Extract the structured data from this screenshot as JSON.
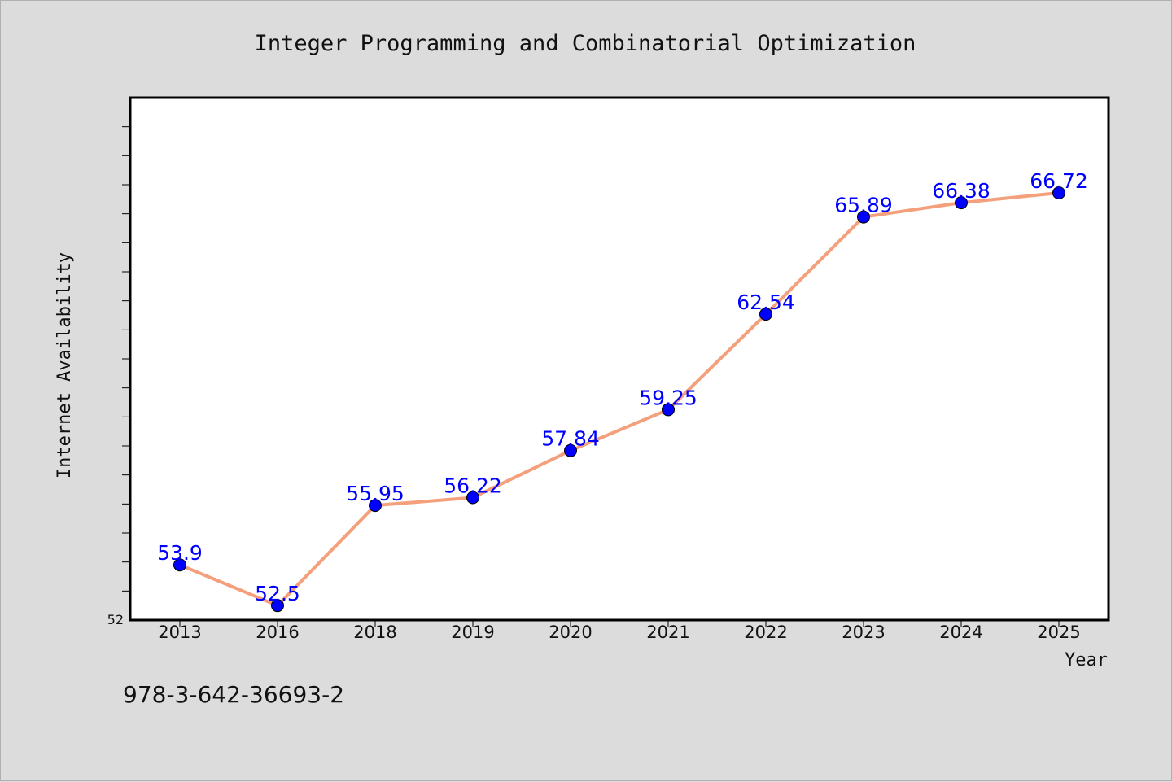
{
  "chart_data": {
    "type": "line",
    "title": "Integer Programming and Combinatorial Optimization",
    "xlabel": "Year",
    "ylabel": "Internet Availability",
    "categories": [
      "2013",
      "2016",
      "2018",
      "2019",
      "2020",
      "2021",
      "2022",
      "2023",
      "2024",
      "2025"
    ],
    "series": [
      {
        "values": [
          53.9,
          52.5,
          55.95,
          56.22,
          57.84,
          59.25,
          62.54,
          65.89,
          66.38,
          66.72
        ],
        "labels": [
          "53.9",
          "52.5",
          "55.95",
          "56.22",
          "57.84",
          "59.25",
          "62.54",
          "65.89",
          "66.38",
          "66.72"
        ],
        "line_color": "#f4a07c",
        "marker_color": "#0000ff"
      }
    ],
    "ylim": [
      52,
      70
    ],
    "y_min_label": "52",
    "grid": false,
    "legend": "none"
  },
  "footer": {
    "isbn": "978-3-642-36693-2"
  }
}
